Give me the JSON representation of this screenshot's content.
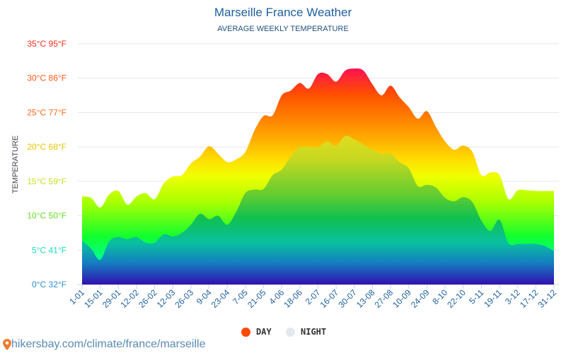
{
  "header": {
    "title": "Marseille France Weather",
    "subtitle": "AVERAGE WEEKLY TEMPERATURE"
  },
  "source": {
    "text": "hikersbay.com/climate/france/marseille",
    "icon": "map-pin-icon"
  },
  "legend": [
    {
      "label": "DAY",
      "color": "#ff4a00"
    },
    {
      "label": "NIGHT",
      "color": "#e3e9f0"
    }
  ],
  "chart_data": {
    "type": "area",
    "title": "Marseille France Weather",
    "subtitle": "AVERAGE WEEKLY TEMPERATURE",
    "ylabel": "TEMPERATURE",
    "xlabel": "",
    "ylim": [
      0,
      35
    ],
    "grid": true,
    "legend_position": "bottom",
    "y_ticks": [
      {
        "value": 0,
        "label": "0°C 32°F",
        "color": "#2a8fd0"
      },
      {
        "value": 5,
        "label": "5°C 41°F",
        "color": "#18dcc0"
      },
      {
        "value": 10,
        "label": "10°C 50°F",
        "color": "#66dd22"
      },
      {
        "value": 15,
        "label": "15°C 59°F",
        "color": "#c8e020"
      },
      {
        "value": 20,
        "label": "20°C 68°F",
        "color": "#e8c400"
      },
      {
        "value": 25,
        "label": "25°C 77°F",
        "color": "#ff6a1a"
      },
      {
        "value": 30,
        "label": "30°C 86°F",
        "color": "#ff5a1a"
      },
      {
        "value": 35,
        "label": "35°C 95°F",
        "color": "#ff2a1a"
      }
    ],
    "x_tick_labels": [
      "1-01",
      "15-01",
      "29-01",
      "12-02",
      "26-02",
      "12-03",
      "26-03",
      "9-04",
      "23-04",
      "7-05",
      "21-05",
      "4-06",
      "18-06",
      "2-07",
      "16-07",
      "30-07",
      "13-08",
      "27-08",
      "10-09",
      "24-09",
      "8-10",
      "22-10",
      "5-11",
      "19-11",
      "3-12",
      "17-12",
      "31-12"
    ],
    "x": [
      "1-01",
      "8-01",
      "15-01",
      "22-01",
      "29-01",
      "5-02",
      "12-02",
      "19-02",
      "26-02",
      "5-03",
      "12-03",
      "19-03",
      "26-03",
      "2-04",
      "9-04",
      "16-04",
      "23-04",
      "30-04",
      "7-05",
      "14-05",
      "21-05",
      "28-05",
      "4-06",
      "11-06",
      "18-06",
      "25-06",
      "2-07",
      "9-07",
      "16-07",
      "23-07",
      "30-07",
      "6-08",
      "13-08",
      "20-08",
      "27-08",
      "3-09",
      "10-09",
      "17-09",
      "24-09",
      "1-10",
      "8-10",
      "15-10",
      "22-10",
      "29-10",
      "5-11",
      "12-11",
      "19-11",
      "26-11",
      "3-12",
      "10-12",
      "17-12",
      "24-12",
      "31-12"
    ],
    "series": [
      {
        "name": "DAY",
        "color": "#ff4a00",
        "values": [
          12.8,
          12.6,
          11.2,
          13.1,
          13.6,
          11.6,
          12.8,
          13.3,
          12.4,
          14.7,
          15.7,
          15.9,
          17.6,
          18.6,
          20.1,
          19.0,
          17.8,
          18.2,
          19.3,
          22.4,
          24.5,
          24.6,
          27.5,
          28.2,
          29.3,
          28.5,
          30.6,
          30.6,
          29.5,
          31.1,
          31.4,
          31.1,
          29.1,
          27.5,
          28.9,
          27.2,
          25.8,
          24.1,
          25.2,
          22.9,
          20.8,
          19.6,
          20.2,
          19.3,
          15.9,
          16.3,
          15.9,
          12.4,
          13.7,
          13.7,
          13.6,
          13.6,
          13.6
        ]
      },
      {
        "name": "NIGHT",
        "color": "#e3e9f0",
        "values": [
          6.4,
          5.2,
          3.6,
          6.3,
          6.9,
          6.6,
          6.9,
          6.1,
          6.1,
          7.3,
          7.0,
          7.5,
          8.7,
          10.3,
          9.5,
          10.0,
          8.7,
          10.6,
          13.3,
          13.8,
          13.9,
          15.9,
          16.7,
          18.6,
          20.0,
          20.0,
          20.0,
          20.8,
          20.2,
          21.6,
          21.1,
          20.3,
          19.6,
          19.0,
          19.0,
          17.8,
          16.9,
          14.3,
          14.5,
          14.1,
          12.6,
          12.1,
          12.7,
          12.0,
          9.3,
          7.8,
          9.4,
          6.0,
          5.9,
          5.9,
          5.9,
          5.6,
          4.9
        ]
      }
    ]
  }
}
